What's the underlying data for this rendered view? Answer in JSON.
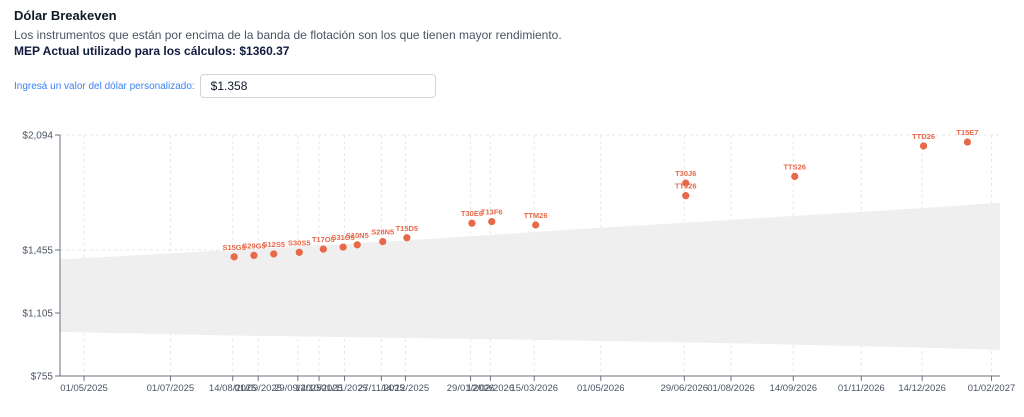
{
  "header": {
    "title": "Dólar Breakeven",
    "subtitle": "Los instrumentos que están por encima de la banda de flotación son los que tienen mayor rendimiento.",
    "mep_text": "MEP Actual utilizado para los cálculos: $1360.37"
  },
  "custom_dollar": {
    "label": "Ingresá un valor del dólar personalizado:",
    "value": "$1.358"
  },
  "colors": {
    "point": "#e8694a",
    "label": "#e8694a",
    "band": "#efefef",
    "grid": "#e5e7eb",
    "axis": "#6b7280",
    "tick_text": "#4b5563"
  },
  "chart_data": {
    "type": "scatter",
    "title": "",
    "xlabel": "",
    "ylabel": "",
    "ylim": [
      755,
      2094
    ],
    "xlim": [
      "2025-04-14",
      "2027-02-07"
    ],
    "y_ticks": [
      {
        "value": 2094,
        "label": "$2,094"
      },
      {
        "value": 1455,
        "label": "$1,455"
      },
      {
        "value": 1105,
        "label": "$1,105"
      },
      {
        "value": 755,
        "label": "$755"
      }
    ],
    "x_ticks": [
      {
        "date": "2025-05-01",
        "label": "01/05/2025"
      },
      {
        "date": "2025-07-01",
        "label": "01/07/2025"
      },
      {
        "date": "2025-08-14",
        "label": "14/08/2025"
      },
      {
        "date": "2025-09-01",
        "label": "01/09/2025"
      },
      {
        "date": "2025-09-29",
        "label": "29/09/2025"
      },
      {
        "date": "2025-10-14",
        "label": "14/10/2025"
      },
      {
        "date": "2025-11-01",
        "label": "01/11/2025"
      },
      {
        "date": "2025-11-27",
        "label": "27/11/2025"
      },
      {
        "date": "2025-12-14",
        "label": "14/12/2025"
      },
      {
        "date": "2026-01-29",
        "label": "29/01/2026"
      },
      {
        "date": "2026-02-12",
        "label": "12/02/2026"
      },
      {
        "date": "2026-03-15",
        "label": "15/03/2026"
      },
      {
        "date": "2026-05-01",
        "label": "01/05/2026"
      },
      {
        "date": "2026-06-29",
        "label": "29/06/2026"
      },
      {
        "date": "2026-08-01",
        "label": "01/08/2026"
      },
      {
        "date": "2026-09-14",
        "label": "14/09/2026"
      },
      {
        "date": "2026-11-01",
        "label": "01/11/2026"
      },
      {
        "date": "2026-12-14",
        "label": "14/12/2026"
      },
      {
        "date": "2027-02-01",
        "label": "01/02/2027"
      }
    ],
    "band": {
      "dates": [
        "2025-04-14",
        "2025-08-14",
        "2025-12-14",
        "2026-04-14",
        "2026-08-14",
        "2026-12-14",
        "2027-02-07"
      ],
      "lower": [
        1000,
        980,
        966,
        952,
        935,
        913,
        900
      ],
      "upper": [
        1403,
        1455,
        1508,
        1570,
        1629,
        1688,
        1718
      ]
    },
    "points": [
      {
        "name": "S15G5",
        "date": "2025-08-15",
        "value": 1417
      },
      {
        "name": "S29G5",
        "date": "2025-08-29",
        "value": 1425
      },
      {
        "name": "S12S5",
        "date": "2025-09-12",
        "value": 1433
      },
      {
        "name": "S30S5",
        "date": "2025-09-30",
        "value": 1442
      },
      {
        "name": "T17O5",
        "date": "2025-10-17",
        "value": 1460
      },
      {
        "name": "S31O5",
        "date": "2025-10-31",
        "value": 1471
      },
      {
        "name": "S10N5",
        "date": "2025-11-10",
        "value": 1484
      },
      {
        "name": "S28N5",
        "date": "2025-11-28",
        "value": 1502
      },
      {
        "name": "T15D5",
        "date": "2025-12-15",
        "value": 1523
      },
      {
        "name": "T30E6",
        "date": "2026-01-30",
        "value": 1604
      },
      {
        "name": "T13F6",
        "date": "2026-02-13",
        "value": 1613
      },
      {
        "name": "TTM26",
        "date": "2026-03-16",
        "value": 1594
      },
      {
        "name": "T30J6",
        "date": "2026-06-30",
        "value": 1827
      },
      {
        "name": "TTJ26",
        "date": "2026-06-30",
        "value": 1757
      },
      {
        "name": "TTS26",
        "date": "2026-09-15",
        "value": 1864
      },
      {
        "name": "TTD26",
        "date": "2026-12-15",
        "value": 2033
      },
      {
        "name": "T15E7",
        "date": "2027-01-15",
        "value": 2055
      }
    ]
  }
}
